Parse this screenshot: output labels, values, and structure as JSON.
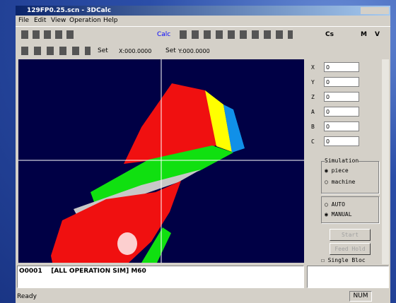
{
  "window": {
    "title": "129FP0.25.scn - 3DCalc",
    "menu": [
      "File",
      "Edit",
      "View",
      "Operation",
      "Help"
    ],
    "toolbar1": [
      "Calc",
      "Cs",
      "M",
      "V"
    ],
    "toolbar2": [
      "Set",
      "X:000.0000",
      "Set",
      "Y:000.0000"
    ]
  },
  "panel": {
    "fields": [
      {
        "label": "X",
        "value": "0"
      },
      {
        "label": "Y",
        "value": "0"
      },
      {
        "label": "Z",
        "value": "0"
      },
      {
        "label": "A",
        "value": "0"
      },
      {
        "label": "B",
        "value": "0"
      },
      {
        "label": "C",
        "value": "0"
      }
    ],
    "simulation": {
      "title": "Simulation",
      "options": [
        "piece",
        "machine"
      ]
    },
    "mode": [
      "AUTO",
      "MANUAL"
    ],
    "buttons": [
      "Start",
      "Feed Hold"
    ],
    "checkbox": "Single Bloc"
  },
  "program": "O0001    [ALL OPERATION SIM] M60",
  "status": {
    "left": "Ready",
    "right": "NUM"
  }
}
